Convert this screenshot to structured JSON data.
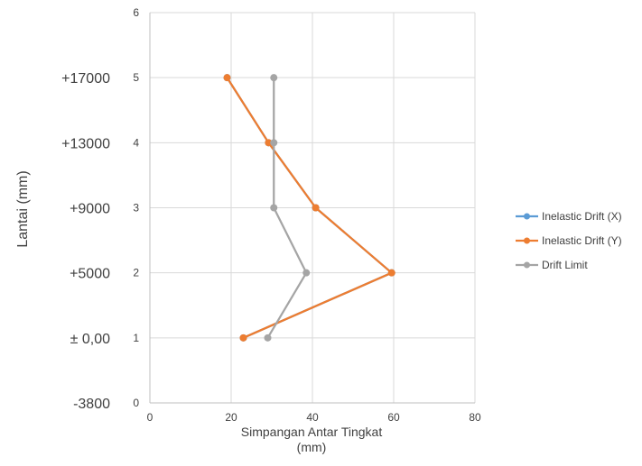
{
  "chart_data": {
    "type": "scatter",
    "xlabel": "Simpangan Antar Tingkat (mm)",
    "xlabel_lines": [
      "Simpangan Antar Tingkat",
      "(mm)"
    ],
    "ylabel": "Lantai (mm)",
    "xlim": [
      0,
      80
    ],
    "ylim": [
      0,
      6
    ],
    "x_ticks": [
      0,
      20,
      40,
      60,
      80
    ],
    "y_ticks": [
      0,
      1,
      2,
      3,
      4,
      5,
      6
    ],
    "floor_labels": [
      {
        "y": 0,
        "label": "-3800"
      },
      {
        "y": 1,
        "label": "± 0,00"
      },
      {
        "y": 2,
        "label": "+5000"
      },
      {
        "y": 3,
        "label": "+9000"
      },
      {
        "y": 4,
        "label": "+13000"
      },
      {
        "y": 5,
        "label": "+17000"
      }
    ],
    "grid": true,
    "legend_position": "right",
    "series": [
      {
        "name": "Inelastic Drift (X)",
        "color": "#5B9BD5",
        "points": [
          [
            23,
            1
          ],
          [
            59.5,
            2
          ],
          [
            40.8,
            3
          ],
          [
            29.2,
            4
          ],
          [
            19,
            5
          ]
        ]
      },
      {
        "name": "Inelastic Drift (Y)",
        "color": "#ED7D31",
        "points": [
          [
            23,
            1
          ],
          [
            59.5,
            2
          ],
          [
            40.8,
            3
          ],
          [
            29.2,
            4
          ],
          [
            19,
            5
          ]
        ]
      },
      {
        "name": "Drift Limit",
        "color": "#A5A5A5",
        "points": [
          [
            29,
            1
          ],
          [
            38.5,
            2
          ],
          [
            30.5,
            3
          ],
          [
            30.5,
            4
          ],
          [
            30.5,
            5
          ]
        ]
      }
    ]
  }
}
